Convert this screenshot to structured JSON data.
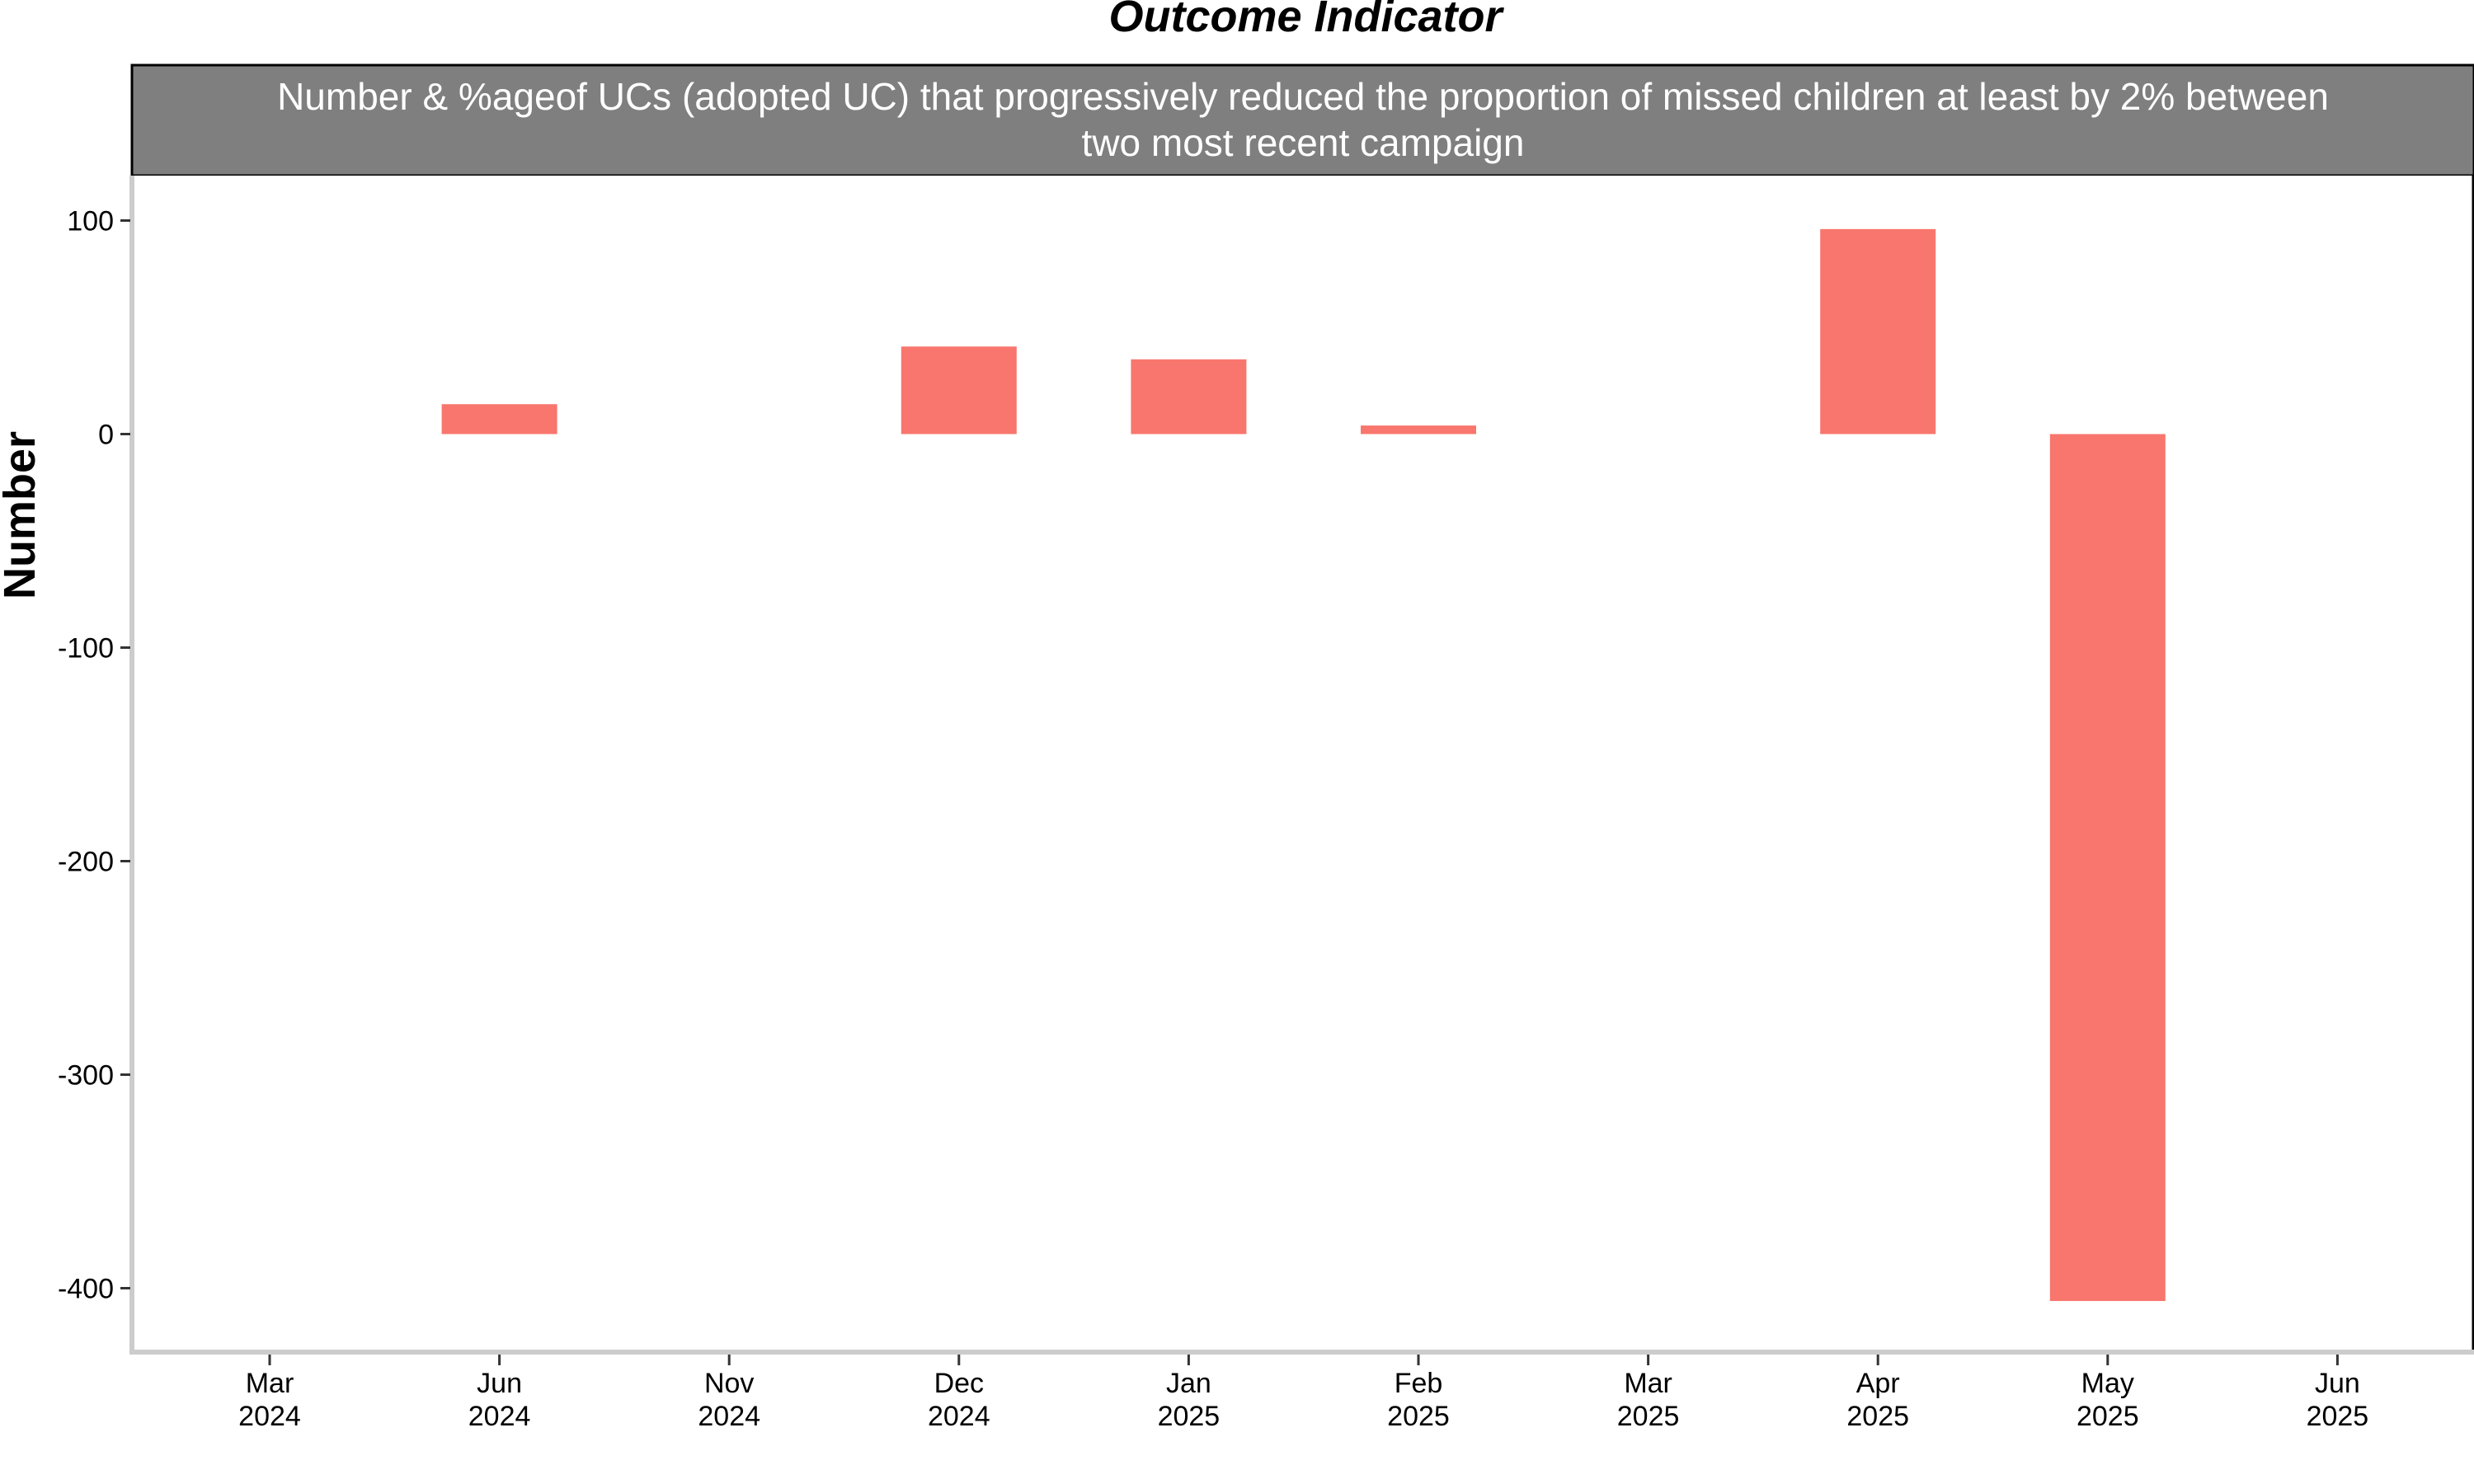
{
  "chart_data": {
    "type": "bar",
    "title": "Outcome Indicator",
    "facet_label_lines": [
      "Number & %ageof UCs (adopted UC) that progressively reduced the proportion of missed children at least by 2% between",
      "two most recent campaign"
    ],
    "xlabel": "",
    "ylabel": "Number",
    "categories": [
      [
        "Mar",
        "2024"
      ],
      [
        "Jun",
        "2024"
      ],
      [
        "Nov",
        "2024"
      ],
      [
        "Dec",
        "2024"
      ],
      [
        "Jan",
        "2025"
      ],
      [
        "Feb",
        "2025"
      ],
      [
        "Mar",
        "2025"
      ],
      [
        "Apr",
        "2025"
      ],
      [
        "May",
        "2025"
      ],
      [
        "Jun",
        "2025"
      ]
    ],
    "values": [
      null,
      14,
      null,
      41,
      35,
      4,
      null,
      96,
      -406,
      null
    ],
    "ylim": [
      -430,
      120
    ],
    "yticks": [
      100,
      0,
      -100,
      -200,
      -300,
      -400
    ],
    "bar_color": "#F8766D",
    "strip_color": "#7F7F7F",
    "grid": false,
    "legend": "none"
  }
}
